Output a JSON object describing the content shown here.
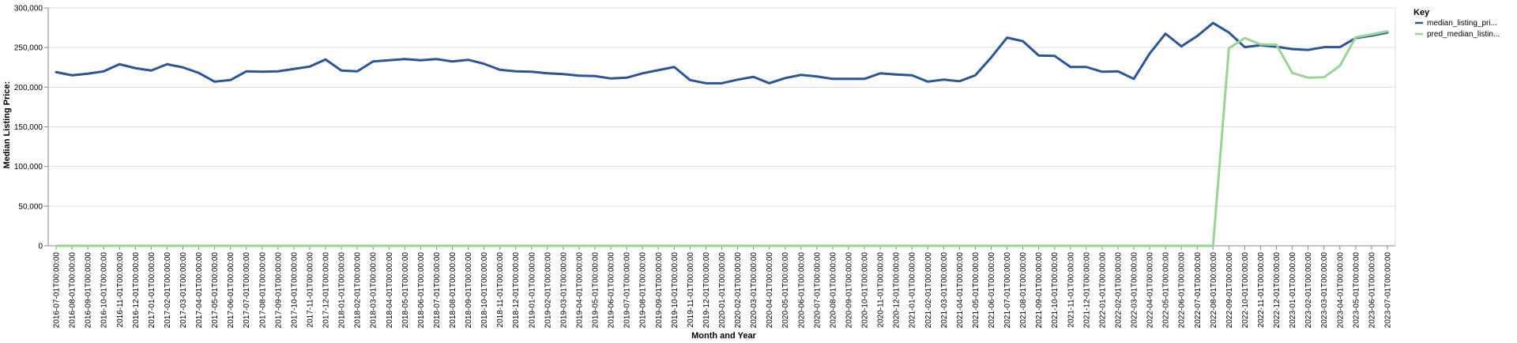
{
  "chart_data": {
    "type": "line",
    "xlabel": "Month and Year",
    "ylabel": "Median Listing Price:",
    "ylim": [
      0,
      300000
    ],
    "yticks": [
      "0",
      "50,000",
      "100,000",
      "150,000",
      "200,000",
      "250,000",
      "300,000"
    ],
    "grid": true,
    "legend": {
      "title": "Key",
      "position": "top-right"
    },
    "x": [
      "2016-07-01T00:00:00",
      "2016-08-01T00:00:00",
      "2016-09-01T00:00:00",
      "2016-10-01T00:00:00",
      "2016-11-01T00:00:00",
      "2016-12-01T00:00:00",
      "2017-01-01T00:00:00",
      "2017-02-01T00:00:00",
      "2017-03-01T00:00:00",
      "2017-04-01T00:00:00",
      "2017-05-01T00:00:00",
      "2017-06-01T00:00:00",
      "2017-07-01T00:00:00",
      "2017-08-01T00:00:00",
      "2017-09-01T00:00:00",
      "2017-10-01T00:00:00",
      "2017-11-01T00:00:00",
      "2017-12-01T00:00:00",
      "2018-01-01T00:00:00",
      "2018-02-01T00:00:00",
      "2018-03-01T00:00:00",
      "2018-04-01T00:00:00",
      "2018-05-01T00:00:00",
      "2018-06-01T00:00:00",
      "2018-07-01T00:00:00",
      "2018-08-01T00:00:00",
      "2018-09-01T00:00:00",
      "2018-10-01T00:00:00",
      "2018-11-01T00:00:00",
      "2018-12-01T00:00:00",
      "2019-01-01T00:00:00",
      "2019-02-01T00:00:00",
      "2019-03-01T00:00:00",
      "2019-04-01T00:00:00",
      "2019-05-01T00:00:00",
      "2019-06-01T00:00:00",
      "2019-07-01T00:00:00",
      "2019-08-01T00:00:00",
      "2019-09-01T00:00:00",
      "2019-10-01T00:00:00",
      "2019-11-01T00:00:00",
      "2019-12-01T00:00:00",
      "2020-01-01T00:00:00",
      "2020-02-01T00:00:00",
      "2020-03-01T00:00:00",
      "2020-04-01T00:00:00",
      "2020-05-01T00:00:00",
      "2020-06-01T00:00:00",
      "2020-07-01T00:00:00",
      "2020-08-01T00:00:00",
      "2020-09-01T00:00:00",
      "2020-10-01T00:00:00",
      "2020-11-01T00:00:00",
      "2020-12-01T00:00:00",
      "2021-01-01T00:00:00",
      "2021-02-01T00:00:00",
      "2021-03-01T00:00:00",
      "2021-04-01T00:00:00",
      "2021-05-01T00:00:00",
      "2021-06-01T00:00:00",
      "2021-07-01T00:00:00",
      "2021-08-01T00:00:00",
      "2021-09-01T00:00:00",
      "2021-10-01T00:00:00",
      "2021-11-01T00:00:00",
      "2021-12-01T00:00:00",
      "2022-01-01T00:00:00",
      "2022-02-01T00:00:00",
      "2022-03-01T00:00:00",
      "2022-04-01T00:00:00",
      "2022-05-01T00:00:00",
      "2022-06-01T00:00:00",
      "2022-07-01T00:00:00",
      "2022-08-01T00:00:00",
      "2022-09-01T00:00:00",
      "2022-10-01T00:00:00",
      "2022-11-01T00:00:00",
      "2022-12-01T00:00:00",
      "2023-01-01T00:00:00",
      "2023-02-01T00:00:00",
      "2023-03-01T00:00:00",
      "2023-04-01T00:00:00",
      "2023-05-01T00:00:00",
      "2023-06-01T00:00:00",
      "2023-07-01T00:00:00"
    ],
    "series": [
      {
        "name": "median_listing_pri...",
        "color": "#2a5599",
        "values": [
          219000,
          215000,
          217000,
          220000,
          229000,
          224000,
          221000,
          229000,
          225000,
          218000,
          207000,
          209000,
          220000,
          219500,
          220000,
          223000,
          226000,
          235000,
          221000,
          220000,
          232500,
          234000,
          235500,
          234000,
          235500,
          232500,
          234500,
          229500,
          222000,
          220000,
          219500,
          217500,
          216500,
          214500,
          214000,
          211000,
          212000,
          217500,
          221500,
          225500,
          209000,
          205000,
          205000,
          209500,
          213000,
          205000,
          211500,
          215500,
          213500,
          210500,
          210500,
          210500,
          217500,
          216000,
          215000,
          207000,
          209500,
          207500,
          215000,
          237500,
          262500,
          258000,
          240000,
          239500,
          225500,
          225500,
          219500,
          220000,
          210500,
          242500,
          267500,
          251500,
          264500,
          281000,
          269000,
          250500,
          253000,
          251000,
          248000,
          247000,
          250500,
          250500,
          262000,
          265000,
          269000
        ]
      },
      {
        "name": "pred_median_listin...",
        "color": "#98d594",
        "values": [
          0,
          0,
          0,
          0,
          0,
          0,
          0,
          0,
          0,
          0,
          0,
          0,
          0,
          0,
          0,
          0,
          0,
          0,
          0,
          0,
          0,
          0,
          0,
          0,
          0,
          0,
          0,
          0,
          0,
          0,
          0,
          0,
          0,
          0,
          0,
          0,
          0,
          0,
          0,
          0,
          0,
          0,
          0,
          0,
          0,
          0,
          0,
          0,
          0,
          0,
          0,
          0,
          0,
          0,
          0,
          0,
          0,
          0,
          0,
          0,
          0,
          0,
          0,
          0,
          0,
          0,
          0,
          0,
          0,
          0,
          0,
          0,
          0,
          0,
          249000,
          262000,
          254000,
          253500,
          218000,
          212000,
          212500,
          227000,
          263000,
          266500,
          270500
        ]
      }
    ]
  }
}
